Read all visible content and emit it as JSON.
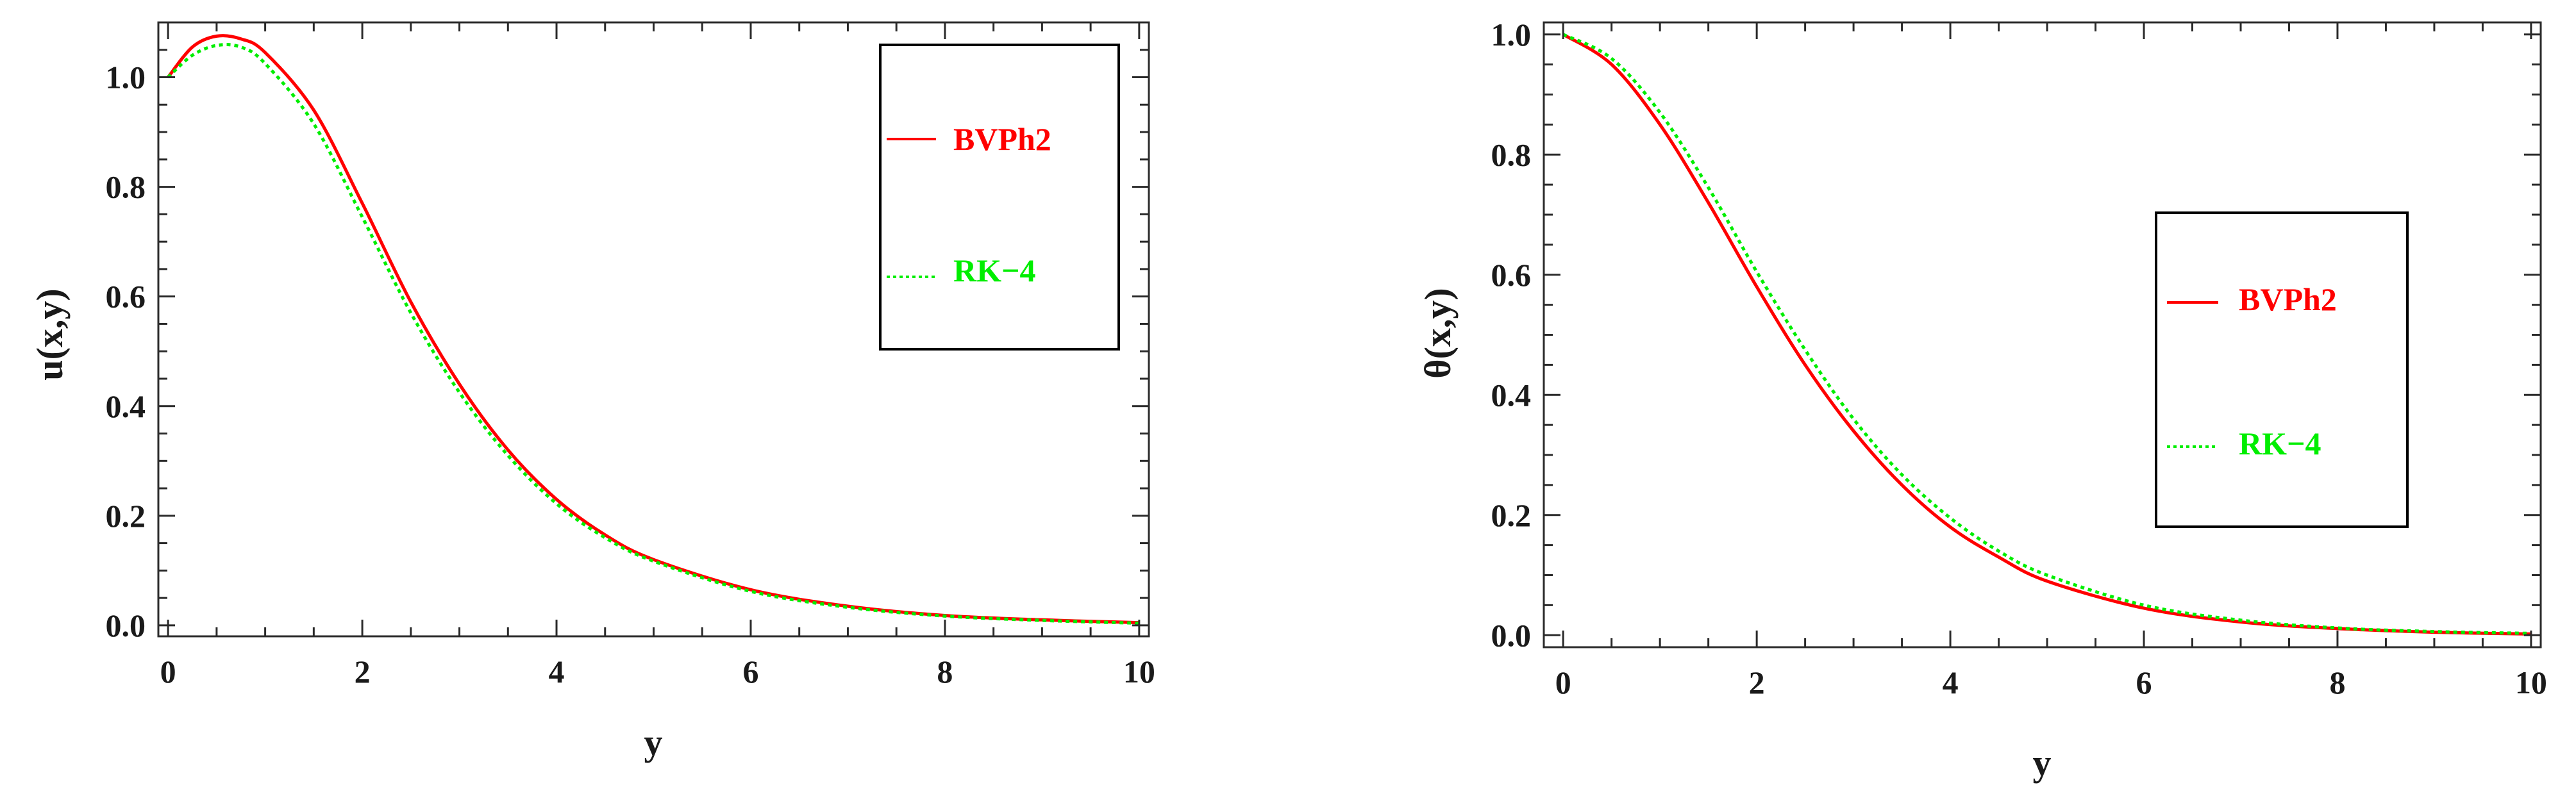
{
  "chart_data": [
    {
      "type": "line",
      "title": "",
      "xlabel": "y",
      "ylabel": "u(x,y)",
      "xlim": [
        -0.1,
        10.1
      ],
      "ylim": [
        -0.02,
        1.1
      ],
      "xticks": [
        0,
        2,
        4,
        6,
        8,
        10
      ],
      "yticks": [
        0.0,
        0.2,
        0.4,
        0.6,
        0.8,
        1.0
      ],
      "xtick_labels": [
        "0",
        "2",
        "4",
        "6",
        "8",
        "10"
      ],
      "ytick_labels": [
        "0.0",
        "0.2",
        "0.4",
        "0.6",
        "0.8",
        "1.0"
      ],
      "x": [
        0,
        0.25,
        0.5,
        0.75,
        1,
        1.5,
        2,
        2.5,
        3,
        3.5,
        4,
        4.5,
        5,
        6,
        7,
        8,
        9,
        10
      ],
      "series": [
        {
          "name": "BVPh2",
          "color": "#ff0000",
          "style": "solid",
          "values": [
            1.0,
            1.055,
            1.075,
            1.07,
            1.045,
            0.94,
            0.77,
            0.59,
            0.44,
            0.32,
            0.23,
            0.165,
            0.12,
            0.065,
            0.035,
            0.018,
            0.01,
            0.005
          ]
        },
        {
          "name": "RK−4",
          "color": "#00ee00",
          "style": "dotted",
          "values": [
            1.0,
            1.04,
            1.058,
            1.055,
            1.025,
            0.915,
            0.745,
            0.57,
            0.425,
            0.31,
            0.222,
            0.16,
            0.117,
            0.062,
            0.033,
            0.017,
            0.009,
            0.004
          ]
        }
      ],
      "legend": {
        "position": "top-right",
        "entries": [
          "BVPh2",
          "RK−4"
        ]
      },
      "grid": false
    },
    {
      "type": "line",
      "title": "",
      "xlabel": "y",
      "ylabel": "θ(x,y)",
      "xlim": [
        -0.2,
        10.1
      ],
      "ylim": [
        -0.02,
        1.02
      ],
      "xticks": [
        0,
        2,
        4,
        6,
        8,
        10
      ],
      "yticks": [
        0.0,
        0.2,
        0.4,
        0.6,
        0.8,
        1.0
      ],
      "xtick_labels": [
        "0",
        "2",
        "4",
        "6",
        "8",
        "10"
      ],
      "ytick_labels": [
        "0.0",
        "0.2",
        "0.4",
        "0.6",
        "0.8",
        "1.0"
      ],
      "x": [
        0,
        0.5,
        1,
        1.5,
        2,
        2.5,
        3,
        3.5,
        4,
        4.5,
        5,
        6,
        7,
        8,
        9,
        10
      ],
      "series": [
        {
          "name": "BVPh2",
          "color": "#ff0000",
          "style": "solid",
          "values": [
            1.0,
            0.95,
            0.85,
            0.72,
            0.58,
            0.45,
            0.34,
            0.25,
            0.18,
            0.13,
            0.09,
            0.045,
            0.022,
            0.011,
            0.005,
            0.002
          ]
        },
        {
          "name": "RK−4",
          "color": "#00ee00",
          "style": "dotted",
          "values": [
            1.0,
            0.96,
            0.87,
            0.745,
            0.605,
            0.475,
            0.36,
            0.267,
            0.195,
            0.14,
            0.1,
            0.05,
            0.025,
            0.012,
            0.006,
            0.003
          ]
        }
      ],
      "legend": {
        "position": "center-right",
        "entries": [
          "BVPh2",
          "RK−4"
        ]
      },
      "grid": false
    }
  ]
}
